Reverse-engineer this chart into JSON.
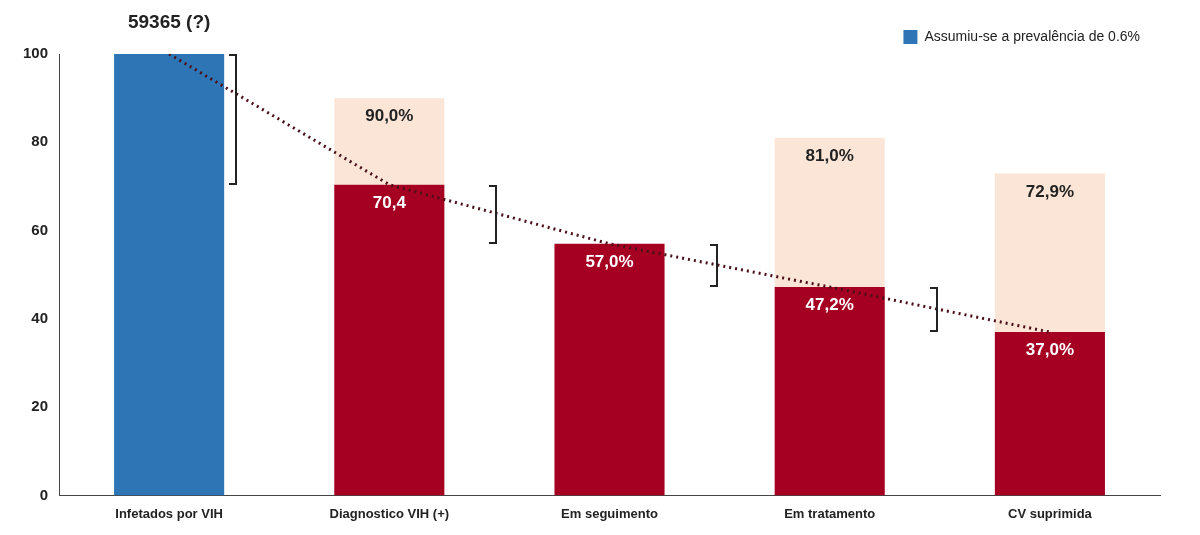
{
  "chart_data": {
    "type": "bar",
    "stacked": true,
    "categories": [
      "Infetados por VIH",
      "Diagnostico VIH (+)",
      "Em seguimento",
      "Em tratamento",
      "CV suprimida"
    ],
    "series": [
      {
        "name": "Assumiu-se a prevalência de 0.6%",
        "color": "#2e75b6",
        "values": [
          100,
          null,
          null,
          null,
          null
        ]
      },
      {
        "color": "#a50021",
        "values": [
          null,
          70.4,
          57.0,
          47.2,
          37.0
        ],
        "value_labels": [
          null,
          "70,4",
          "57,0%",
          "47,2%",
          "37,0%"
        ]
      },
      {
        "color": "#fbe5d6",
        "values": [
          null,
          19.6,
          null,
          33.8,
          35.9
        ]
      },
      {
        "type": "line",
        "color": "#4a0f18",
        "line_style": "dotted",
        "marker": "none",
        "values": [
          100,
          70.4,
          57.0,
          47.2,
          37.0
        ]
      }
    ],
    "annotations": [
      {
        "text": "59365 (?)",
        "x": "Infetados por VIH",
        "y": 100
      },
      {
        "text": "90,0%",
        "x": "Diagnostico VIH (+)",
        "y": 90.0
      },
      {
        "text": "81,0%",
        "x": "Em tratamento",
        "y": 81.0
      },
      {
        "text": "72,9%",
        "x": "CV suprimida",
        "y": 72.9
      }
    ],
    "ylim": [
      0,
      100
    ],
    "yticks": [
      0,
      20,
      40,
      60,
      80,
      100
    ],
    "legend": "top right"
  }
}
